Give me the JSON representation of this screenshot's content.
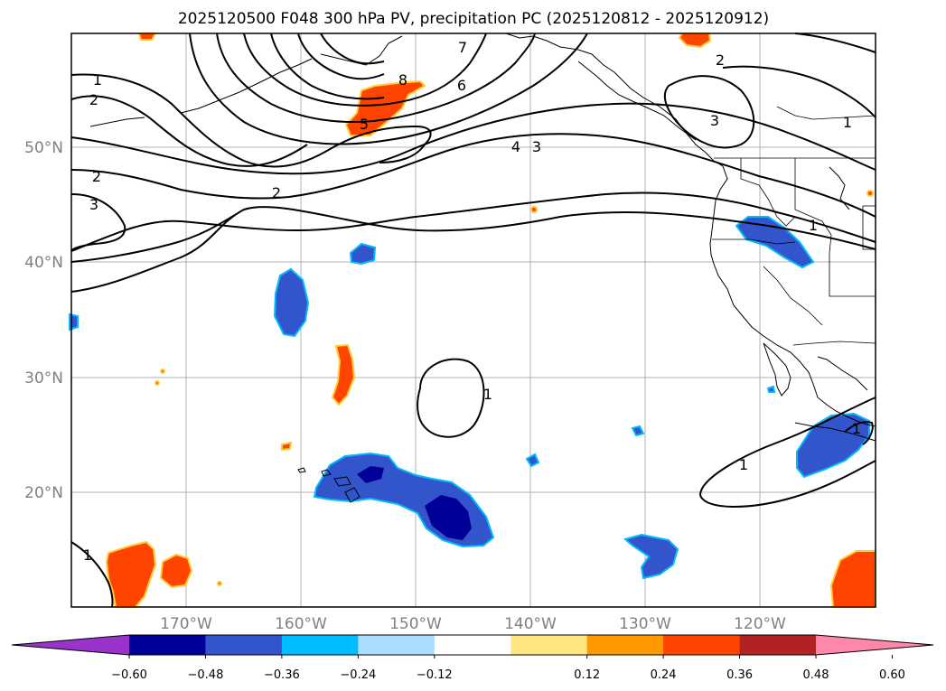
{
  "title": "2025120500 F048 300 hPa PV, precipitation PC (2025120812 - 2025120912)",
  "lat_labels": [
    "50°N",
    "40°N",
    "30°N",
    "20°N"
  ],
  "lon_labels": [
    "170°W",
    "160°W",
    "150°W",
    "140°W",
    "130°W",
    "120°W"
  ],
  "colorbar": {
    "ticks": [
      "−0.60",
      "−0.48",
      "−0.36",
      "−0.24",
      "−0.12",
      "0.12",
      "0.24",
      "0.36",
      "0.48",
      "0.60"
    ],
    "colors": [
      "#9933cc",
      "#000099",
      "#3355cc",
      "#00bbff",
      "#aaddff",
      "#ffffff",
      "#ffe680",
      "#ff9900",
      "#ff4400",
      "#b22222",
      "#ff88aa"
    ]
  },
  "contour_labels": [
    "1",
    "2",
    "2",
    "3",
    "2",
    "8",
    "7",
    "6",
    "5",
    "4",
    "3",
    "2",
    "3",
    "1",
    "1",
    "1",
    "1",
    "1",
    "1"
  ],
  "map_extent": {
    "lon": [
      -180,
      -110
    ],
    "lat": [
      10,
      60
    ]
  },
  "colors": {
    "positive_precip": "#ff4400",
    "negative_precip": "#3355cc",
    "strong_negative": "#000099",
    "grid": "#b0b0b0"
  }
}
